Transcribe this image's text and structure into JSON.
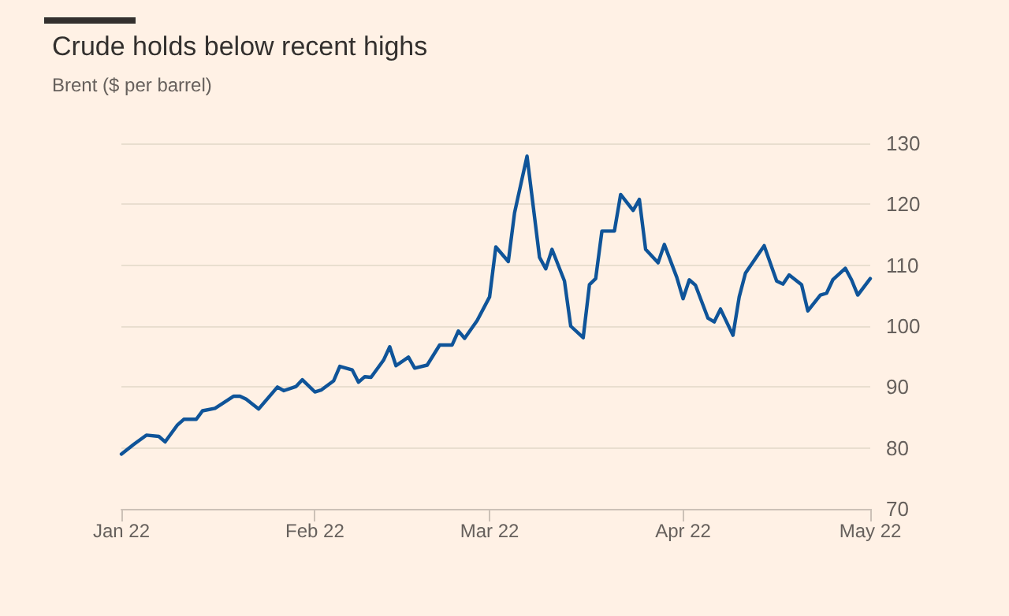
{
  "chart_data": {
    "type": "line",
    "title": "Crude holds below recent highs",
    "subtitle": "Brent ($ per barrel)",
    "x": [
      "2022-01-01",
      "2022-01-03",
      "2022-01-05",
      "2022-01-07",
      "2022-01-08",
      "2022-01-10",
      "2022-01-11",
      "2022-01-13",
      "2022-01-14",
      "2022-01-16",
      "2022-01-19",
      "2022-01-20",
      "2022-01-21",
      "2022-01-23",
      "2022-01-26",
      "2022-01-27",
      "2022-01-29",
      "2022-01-30",
      "2022-02-01",
      "2022-02-02",
      "2022-02-04",
      "2022-02-05",
      "2022-02-07",
      "2022-02-08",
      "2022-02-09",
      "2022-02-10",
      "2022-02-12",
      "2022-02-13",
      "2022-02-14",
      "2022-02-16",
      "2022-02-17",
      "2022-02-19",
      "2022-02-21",
      "2022-02-23",
      "2022-02-24",
      "2022-02-25",
      "2022-02-27",
      "2022-03-01",
      "2022-03-02",
      "2022-03-04",
      "2022-03-05",
      "2022-03-07",
      "2022-03-09",
      "2022-03-10",
      "2022-03-11",
      "2022-03-13",
      "2022-03-14",
      "2022-03-16",
      "2022-03-17",
      "2022-03-18",
      "2022-03-19",
      "2022-03-21",
      "2022-03-22",
      "2022-03-24",
      "2022-03-25",
      "2022-03-26",
      "2022-03-28",
      "2022-03-29",
      "2022-03-31",
      "2022-04-01",
      "2022-04-02",
      "2022-04-03",
      "2022-04-05",
      "2022-04-06",
      "2022-04-07",
      "2022-04-09",
      "2022-04-10",
      "2022-04-11",
      "2022-04-13",
      "2022-04-14",
      "2022-04-16",
      "2022-04-17",
      "2022-04-18",
      "2022-04-20",
      "2022-04-21",
      "2022-04-23",
      "2022-04-24",
      "2022-04-25",
      "2022-04-27",
      "2022-04-28",
      "2022-04-29",
      "2022-05-01"
    ],
    "series": [
      {
        "color": "#0f5499",
        "values": [
          79.0,
          80.6,
          82.1,
          81.9,
          81.0,
          83.8,
          84.7,
          84.7,
          86.1,
          86.5,
          88.5,
          88.5,
          88.0,
          86.4,
          90.0,
          89.4,
          90.1,
          91.2,
          89.2,
          89.5,
          91.0,
          93.4,
          92.8,
          90.8,
          91.7,
          91.6,
          94.4,
          96.6,
          93.5,
          94.9,
          93.1,
          93.6,
          96.9,
          96.9,
          99.2,
          98.0,
          100.9,
          104.8,
          113.0,
          110.6,
          118.6,
          127.9,
          111.3,
          109.4,
          112.6,
          107.4,
          100.0,
          98.1,
          106.8,
          107.8,
          115.6,
          115.6,
          121.6,
          119.0,
          120.8,
          112.6,
          110.4,
          113.4,
          108.0,
          104.5,
          107.6,
          106.7,
          101.3,
          100.7,
          102.8,
          98.5,
          104.8,
          108.7,
          111.7,
          113.2,
          107.4,
          106.9,
          108.4,
          106.8,
          102.5,
          105.1,
          105.4,
          107.6,
          109.5,
          107.6,
          105.1,
          107.8
        ]
      }
    ],
    "xlim": [
      "2022-01-01",
      "2022-05-01"
    ],
    "xticks": [
      {
        "value": "2022-01-01",
        "label": "Jan 22"
      },
      {
        "value": "2022-02-01",
        "label": "Feb 22"
      },
      {
        "value": "2022-03-01",
        "label": "Mar 22"
      },
      {
        "value": "2022-04-01",
        "label": "Apr 22"
      },
      {
        "value": "2022-05-01",
        "label": "May 22"
      }
    ],
    "ylim": [
      70,
      130
    ],
    "yticks": [
      70,
      80,
      90,
      100,
      110,
      120,
      130
    ],
    "grid": "y",
    "marker": "none",
    "line_style": "solid"
  }
}
